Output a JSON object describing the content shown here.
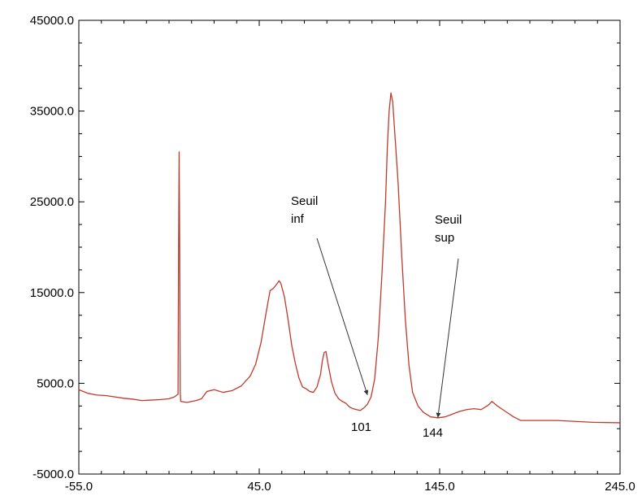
{
  "chart_data": {
    "type": "line",
    "title": "",
    "xlabel": "",
    "ylabel": "",
    "xlim": [
      -55,
      245
    ],
    "ylim": [
      -5000,
      45000
    ],
    "x_ticks": [
      "-55.0",
      "45.0",
      "145.0",
      "245.0"
    ],
    "y_ticks": [
      "-5000.0",
      "5000.0",
      "15000.0",
      "25000.0",
      "35000.0",
      "45000.0"
    ],
    "grid": false,
    "legend": "none",
    "series": [
      {
        "color": "#c0392b",
        "points": [
          [
            -55,
            4300
          ],
          [
            -50,
            3900
          ],
          [
            -45,
            3700
          ],
          [
            -40,
            3650
          ],
          [
            -35,
            3500
          ],
          [
            -30,
            3350
          ],
          [
            -25,
            3250
          ],
          [
            -20,
            3100
          ],
          [
            -15,
            3150
          ],
          [
            -10,
            3200
          ],
          [
            -5,
            3300
          ],
          [
            -2,
            3500
          ],
          [
            0,
            3800
          ],
          [
            0.3,
            20000
          ],
          [
            0.6,
            30500
          ],
          [
            0.9,
            20000
          ],
          [
            1.2,
            4000
          ],
          [
            1.5,
            3000
          ],
          [
            5,
            2900
          ],
          [
            10,
            3100
          ],
          [
            13,
            3300
          ],
          [
            16,
            4100
          ],
          [
            20,
            4300
          ],
          [
            25,
            4000
          ],
          [
            30,
            4200
          ],
          [
            35,
            4700
          ],
          [
            40,
            5800
          ],
          [
            43,
            7100
          ],
          [
            46,
            9500
          ],
          [
            49,
            13000
          ],
          [
            51,
            15200
          ],
          [
            53,
            15500
          ],
          [
            55,
            16000
          ],
          [
            56,
            16300
          ],
          [
            57,
            16000
          ],
          [
            59,
            14500
          ],
          [
            61,
            12000
          ],
          [
            63,
            9200
          ],
          [
            65,
            7200
          ],
          [
            67,
            5600
          ],
          [
            69,
            4600
          ],
          [
            71,
            4400
          ],
          [
            73,
            4100
          ],
          [
            75,
            4000
          ],
          [
            77,
            4600
          ],
          [
            79,
            6000
          ],
          [
            80,
            7500
          ],
          [
            81,
            8400
          ],
          [
            82,
            8500
          ],
          [
            83,
            7300
          ],
          [
            85,
            5200
          ],
          [
            87,
            3900
          ],
          [
            89,
            3300
          ],
          [
            91,
            3000
          ],
          [
            93,
            2800
          ],
          [
            95,
            2400
          ],
          [
            97,
            2200
          ],
          [
            99,
            2100
          ],
          [
            101,
            2000
          ],
          [
            103,
            2300
          ],
          [
            105,
            2700
          ],
          [
            107,
            3500
          ],
          [
            109,
            5500
          ],
          [
            111,
            10000
          ],
          [
            113,
            17000
          ],
          [
            115,
            25000
          ],
          [
            116,
            31000
          ],
          [
            117,
            35000
          ],
          [
            118,
            37000
          ],
          [
            119,
            36000
          ],
          [
            120,
            33000
          ],
          [
            122,
            27000
          ],
          [
            124,
            19000
          ],
          [
            126,
            12000
          ],
          [
            128,
            7000
          ],
          [
            130,
            4000
          ],
          [
            133,
            2500
          ],
          [
            136,
            1800
          ],
          [
            140,
            1300
          ],
          [
            144,
            1200
          ],
          [
            148,
            1300
          ],
          [
            152,
            1600
          ],
          [
            156,
            1900
          ],
          [
            160,
            2100
          ],
          [
            164,
            2200
          ],
          [
            168,
            2100
          ],
          [
            172,
            2600
          ],
          [
            174,
            3000
          ],
          [
            177,
            2500
          ],
          [
            180,
            2100
          ],
          [
            183,
            1700
          ],
          [
            186,
            1300
          ],
          [
            190,
            900
          ],
          [
            200,
            900
          ],
          [
            210,
            900
          ],
          [
            220,
            800
          ],
          [
            230,
            700
          ],
          [
            245,
            650
          ]
        ]
      }
    ],
    "annotations": [
      {
        "lines": [
          "Seuil",
          "inf"
        ],
        "x": 105,
        "y": 3700,
        "label": "101"
      },
      {
        "lines": [
          "Seuil",
          "sup"
        ],
        "x": 144,
        "y": 1200,
        "label": "144"
      }
    ]
  }
}
